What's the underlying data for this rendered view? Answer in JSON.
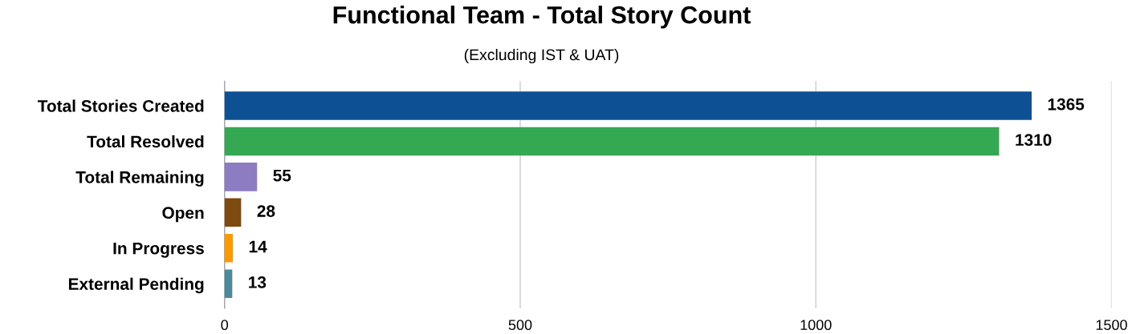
{
  "chart_data": {
    "type": "bar",
    "orientation": "horizontal",
    "title": "Functional Team - Total Story Count",
    "subtitle": "(Excluding IST & UAT)",
    "categories": [
      "Total Stories Created",
      "Total Resolved",
      "Total Remaining",
      "Open",
      "In Progress",
      "External Pending"
    ],
    "values": [
      1365,
      1310,
      55,
      28,
      14,
      13
    ],
    "colors": [
      "#0d5094",
      "#34a853",
      "#8e7cc3",
      "#7f4a10",
      "#ff9900",
      "#4a8a9a"
    ],
    "xlim": [
      0,
      1500
    ],
    "xticks": [
      0,
      500,
      1000,
      1500
    ],
    "grid": "x",
    "data_labels": true
  }
}
